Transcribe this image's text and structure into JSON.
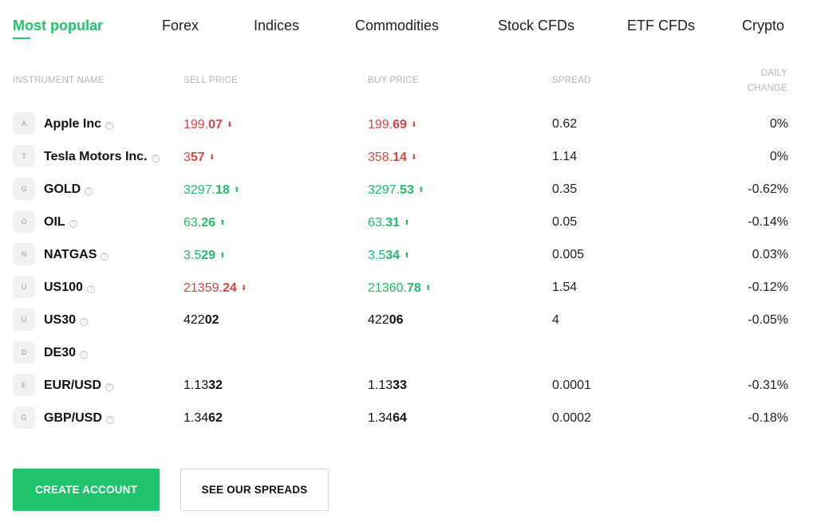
{
  "tabs": [
    {
      "label": "Most popular"
    },
    {
      "label": "Forex"
    },
    {
      "label": "Indices"
    },
    {
      "label": "Commodities"
    },
    {
      "label": "Stock CFDs"
    },
    {
      "label": "ETF CFDs"
    },
    {
      "label": "Crypto"
    }
  ],
  "active_tab": "Most popular",
  "columns": {
    "name": "INSTRUMENT NAME",
    "sell": "SELL PRICE",
    "buy": "BUY PRICE",
    "spread": "SPREAD",
    "change_line1": "DAILY",
    "change_line2": "CHANGE"
  },
  "rows": [
    {
      "badge": "A",
      "name": "Apple Inc",
      "sell": {
        "pre": "199.",
        "bold": "07",
        "dir": "down"
      },
      "buy": {
        "pre": "199.",
        "bold": "69",
        "dir": "down"
      },
      "spread": "0.62",
      "change": "0%"
    },
    {
      "badge": "T",
      "name": "Tesla Motors Inc.",
      "sell": {
        "pre": "3",
        "bold": "57",
        "dir": "down"
      },
      "buy": {
        "pre": "358.",
        "bold": "14",
        "dir": "down"
      },
      "spread": "1.14",
      "change": "0%"
    },
    {
      "badge": "G",
      "name": "GOLD",
      "sell": {
        "pre": "3297.",
        "bold": "18",
        "dir": "up"
      },
      "buy": {
        "pre": "3297.",
        "bold": "53",
        "dir": "up"
      },
      "spread": "0.35",
      "change": "-0.62%"
    },
    {
      "badge": "O",
      "name": "OIL",
      "sell": {
        "pre": "63.",
        "bold": "26",
        "dir": "up"
      },
      "buy": {
        "pre": "63.",
        "bold": "31",
        "dir": "up"
      },
      "spread": "0.05",
      "change": "-0.14%"
    },
    {
      "badge": "N",
      "name": "NATGAS",
      "sell": {
        "pre": "3.5",
        "bold": "29",
        "dir": "up"
      },
      "buy": {
        "pre": "3.5",
        "bold": "34",
        "dir": "up"
      },
      "spread": "0.005",
      "change": "0.03%"
    },
    {
      "badge": "U",
      "name": "US100",
      "sell": {
        "pre": "21359.",
        "bold": "24",
        "dir": "down"
      },
      "buy": {
        "pre": "21360.",
        "bold": "78",
        "dir": "up"
      },
      "spread": "1.54",
      "change": "-0.12%"
    },
    {
      "badge": "U",
      "name": "US30",
      "sell": {
        "pre": "422",
        "bold": "02",
        "dir": "none"
      },
      "buy": {
        "pre": "422",
        "bold": "06",
        "dir": "none"
      },
      "spread": "4",
      "change": "-0.05%"
    },
    {
      "badge": "D",
      "name": "DE30",
      "sell": {
        "pre": "",
        "bold": "",
        "dir": "none"
      },
      "buy": {
        "pre": "",
        "bold": "",
        "dir": "none"
      },
      "spread": "",
      "change": ""
    },
    {
      "badge": "E",
      "name": "EUR/USD",
      "sell": {
        "pre": "1.13",
        "bold": "32",
        "dir": "none"
      },
      "buy": {
        "pre": "1.13",
        "bold": "33",
        "dir": "none"
      },
      "spread": "0.0001",
      "change": "-0.31%"
    },
    {
      "badge": "G",
      "name": "GBP/USD",
      "sell": {
        "pre": "1.34",
        "bold": "62",
        "dir": "none"
      },
      "buy": {
        "pre": "1.34",
        "bold": "64",
        "dir": "none"
      },
      "spread": "0.0002",
      "change": "-0.18%"
    }
  ],
  "help_glyph": "?",
  "arrows": {
    "up": "⬆",
    "down": "⬇"
  },
  "buttons": {
    "create_account": "CREATE ACCOUNT",
    "see_spreads": "SEE OUR SPREADS"
  },
  "colors": {
    "accent": "#1fc46c",
    "price_up": "#1fbd66",
    "price_down": "#d84545"
  }
}
